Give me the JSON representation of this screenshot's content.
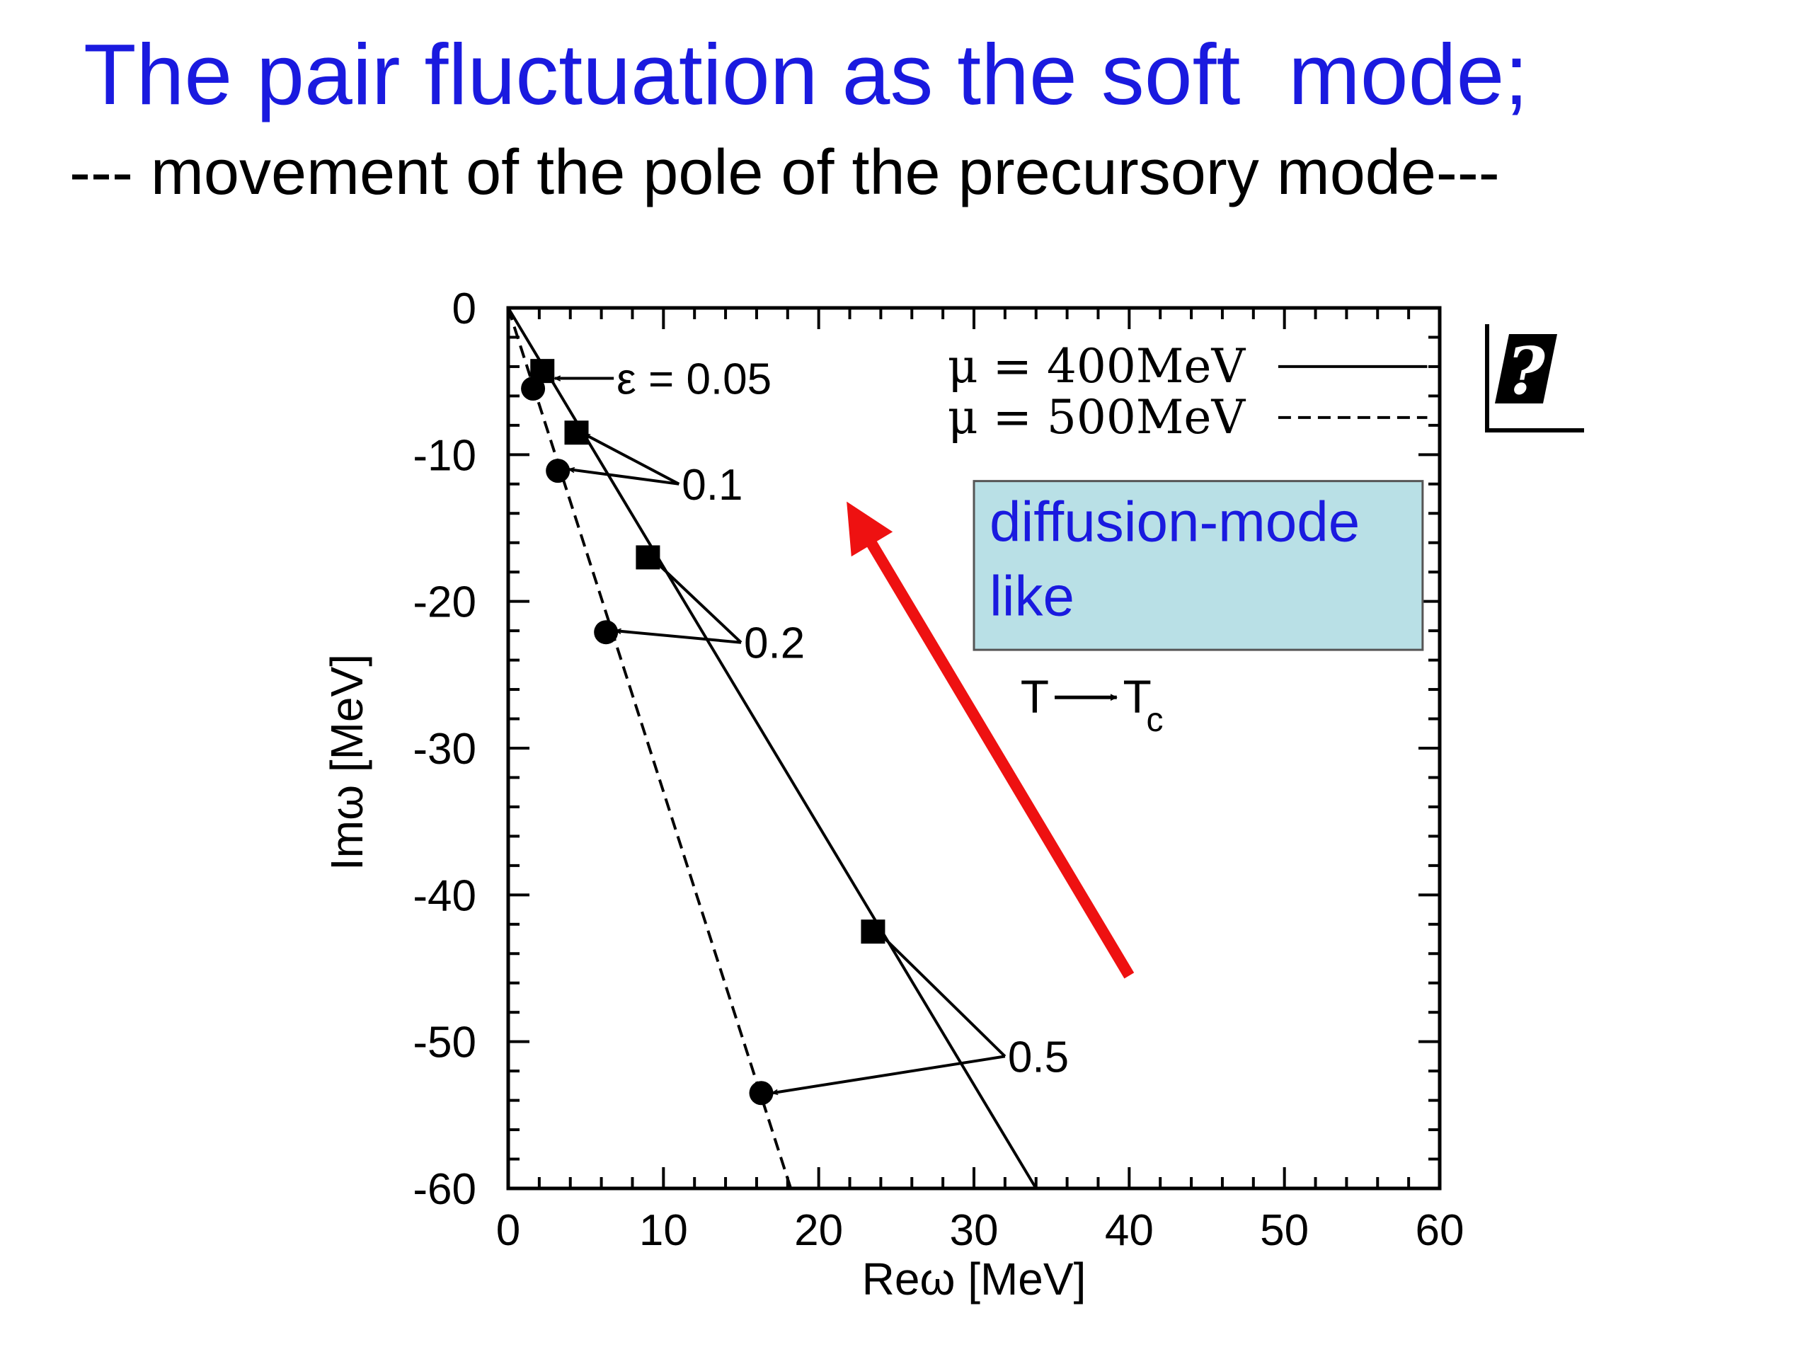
{
  "slide": {
    "title": "The pair fluctuation as the soft  mode;",
    "subtitle": "--- movement of the pole of the precursory mode---"
  },
  "chart_data": {
    "type": "line",
    "xlabel": "Reω [MeV]",
    "ylabel": "Imω [MeV]",
    "xlim": [
      0,
      60
    ],
    "ylim": [
      -60,
      0
    ],
    "x_ticks": [
      0,
      10,
      20,
      30,
      40,
      50,
      60
    ],
    "y_ticks": [
      0,
      -10,
      -20,
      -30,
      -40,
      -50,
      -60
    ],
    "legend_position": "top-right",
    "series": [
      {
        "name": "μ = 400MeV",
        "style": "solid",
        "marker": "square",
        "color": "#000000",
        "line": [
          [
            0,
            0
          ],
          [
            34,
            -60
          ]
        ],
        "points": [
          [
            2.2,
            -4.3
          ],
          [
            4.4,
            -8.5
          ],
          [
            9,
            -17
          ],
          [
            23.5,
            -42.5
          ]
        ]
      },
      {
        "name": "μ = 500MeV",
        "style": "dashed",
        "marker": "circle",
        "color": "#000000",
        "line": [
          [
            0,
            0
          ],
          [
            18.2,
            -60
          ]
        ],
        "points": [
          [
            1.6,
            -5.5
          ],
          [
            3.2,
            -11.1
          ],
          [
            6.3,
            -22.1
          ],
          [
            16.3,
            -53.5
          ]
        ]
      }
    ],
    "epsilon_labels": [
      {
        "text": "ε = 0.05",
        "anchor": [
          6.8,
          -4.8
        ],
        "targets": [
          [
            3.0,
            -4.8
          ]
        ]
      },
      {
        "text": "0.1",
        "anchor": [
          11,
          -12
        ],
        "targets": [
          [
            4.9,
            -8.6
          ],
          [
            3.9,
            -11.0
          ]
        ]
      },
      {
        "text": "0.2",
        "anchor": [
          15,
          -22.8
        ],
        "targets": [
          [
            9.4,
            -17.2
          ],
          [
            6.9,
            -22.0
          ]
        ]
      },
      {
        "text": "0.5",
        "anchor": [
          32,
          -51
        ],
        "targets": [
          [
            23.8,
            -42.5
          ],
          [
            17.0,
            -53.5
          ]
        ]
      }
    ],
    "annotations": {
      "callout": [
        "diffusion-mode",
        "like"
      ],
      "temperature_base": "T",
      "temperature_sub": "c",
      "big_arrow": {
        "from": [
          40,
          -45.5
        ],
        "to": [
          21.8,
          -13.2
        ],
        "color": "#ee1111"
      }
    },
    "callout_color": "#b9e0e6"
  }
}
